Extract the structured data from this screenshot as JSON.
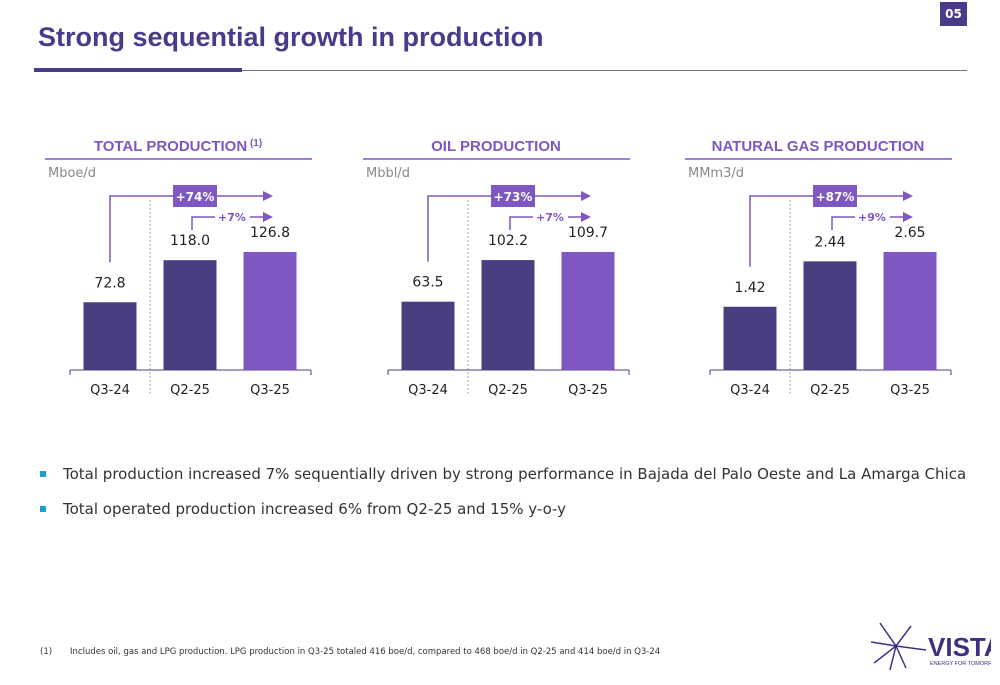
{
  "page_number": "05",
  "title": "Strong sequential growth in production",
  "colors": {
    "primary": "#4b3a8c",
    "accent": "#7e57c2",
    "bullet": "#1aa3c8",
    "bar_dark": "#4a3d80",
    "bar_light": "#7e57c2"
  },
  "chart_data": [
    {
      "type": "bar",
      "title": "TOTAL PRODUCTION",
      "title_note": "(1)",
      "unit": "Mboe/d",
      "categories": [
        "Q3-24",
        "Q2-25",
        "Q3-25"
      ],
      "values": [
        72.8,
        118.0,
        126.8
      ],
      "labels": [
        "72.8",
        "118.0",
        "126.8"
      ],
      "yoy_change": "+74%",
      "qoq_change": "+7%"
    },
    {
      "type": "bar",
      "title": "OIL PRODUCTION",
      "title_note": "",
      "unit": "Mbbl/d",
      "categories": [
        "Q3-24",
        "Q2-25",
        "Q3-25"
      ],
      "values": [
        63.5,
        102.2,
        109.7
      ],
      "labels": [
        "63.5",
        "102.2",
        "109.7"
      ],
      "yoy_change": "+73%",
      "qoq_change": "+7%"
    },
    {
      "type": "bar",
      "title": "NATURAL GAS PRODUCTION",
      "title_note": "",
      "unit": "MMm3/d",
      "categories": [
        "Q3-24",
        "Q2-25",
        "Q3-25"
      ],
      "values": [
        1.42,
        2.44,
        2.65
      ],
      "labels": [
        "1.42",
        "2.44",
        "2.65"
      ],
      "yoy_change": "+87%",
      "qoq_change": "+9%"
    }
  ],
  "bullets": [
    "Total production increased 7% sequentially driven by strong performance in Bajada del Palo Oeste and La Amarga Chica",
    "Total operated production increased 6% from Q2-25 and 15% y-o-y"
  ],
  "footnote": {
    "marker": "(1)",
    "text": "Includes oil, gas and LPG production. LPG production in Q3-25 totaled 416 boe/d, compared to 468 boe/d in Q2-25 and 414 boe/d in Q3-24"
  },
  "logo": {
    "name": "VISTA",
    "tagline": "ENERGY FOR TOMORROW"
  }
}
